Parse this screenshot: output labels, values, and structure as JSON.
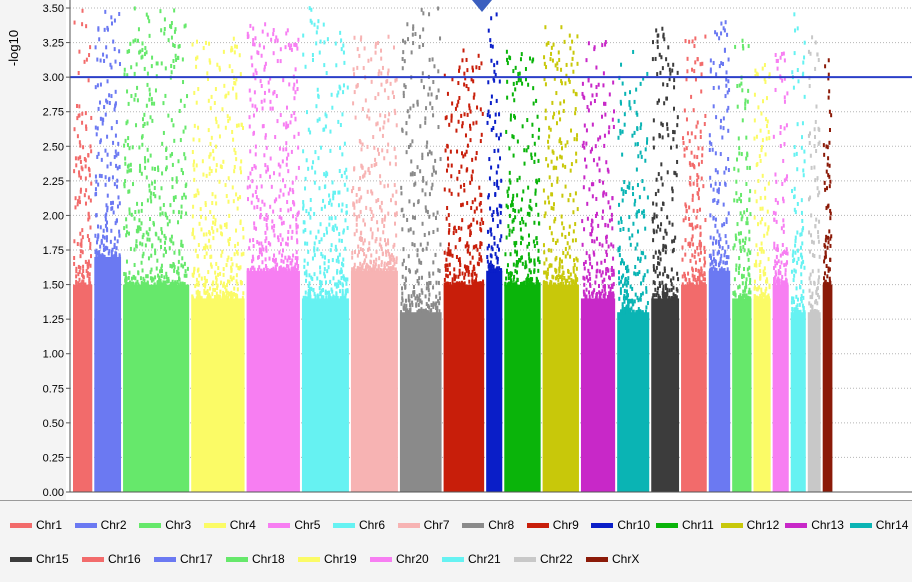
{
  "chart_data": {
    "type": "scatter",
    "title": "",
    "xlabel": "",
    "ylabel": "-log10",
    "ylim": [
      0,
      3.5
    ],
    "yticks": [
      "0.00",
      "0.25",
      "0.50",
      "0.75",
      "1.00",
      "1.25",
      "1.50",
      "1.75",
      "2.00",
      "2.25",
      "2.50",
      "2.75",
      "3.00",
      "3.25",
      "3.50"
    ],
    "threshold": {
      "value": 3.0,
      "color": "#2b3fc8"
    },
    "grid": "horizontal dotted",
    "legend_position": "bottom",
    "series": [
      {
        "name": "Chr1",
        "color": "#f26b6b",
        "peak": 3.5,
        "dense_top": 1.5
      },
      {
        "name": "Chr2",
        "color": "#6b79f2",
        "peak": 3.5,
        "dense_top": 1.7
      },
      {
        "name": "Chr3",
        "color": "#66e86b",
        "peak": 3.5,
        "dense_top": 1.5
      },
      {
        "name": "Chr4",
        "color": "#fbfb66",
        "peak": 3.3,
        "dense_top": 1.4
      },
      {
        "name": "Chr5",
        "color": "#f77ef2",
        "peak": 3.4,
        "dense_top": 1.6
      },
      {
        "name": "Chr6",
        "color": "#66f2f2",
        "peak": 3.5,
        "dense_top": 1.4
      },
      {
        "name": "Chr7",
        "color": "#f7b3b3",
        "peak": 3.3,
        "dense_top": 1.6
      },
      {
        "name": "Chr8",
        "color": "#8a8a8a",
        "peak": 3.5,
        "dense_top": 1.3
      },
      {
        "name": "Chr9",
        "color": "#c81e0a",
        "peak": 3.2,
        "dense_top": 1.5
      },
      {
        "name": "Chr10",
        "color": "#0a1ec8",
        "peak": 3.5,
        "dense_top": 1.6
      },
      {
        "name": "Chr11",
        "color": "#0ab40a",
        "peak": 3.2,
        "dense_top": 1.5
      },
      {
        "name": "Chr12",
        "color": "#c8c80a",
        "peak": 3.4,
        "dense_top": 1.5
      },
      {
        "name": "Chr13",
        "color": "#c828c8",
        "peak": 3.3,
        "dense_top": 1.4
      },
      {
        "name": "Chr14",
        "color": "#0ab4b4",
        "peak": 3.2,
        "dense_top": 1.3
      },
      {
        "name": "Chr15",
        "color": "#3c3c3c",
        "peak": 3.4,
        "dense_top": 1.4
      },
      {
        "name": "Chr16",
        "color": "#f26b6b",
        "peak": 3.3,
        "dense_top": 1.5
      },
      {
        "name": "Chr17",
        "color": "#6b79f2",
        "peak": 3.4,
        "dense_top": 1.6
      },
      {
        "name": "Chr18",
        "color": "#66e86b",
        "peak": 3.3,
        "dense_top": 1.4
      },
      {
        "name": "Chr19",
        "color": "#fbfb66",
        "peak": 3.1,
        "dense_top": 1.4
      },
      {
        "name": "Chr20",
        "color": "#f77ef2",
        "peak": 3.2,
        "dense_top": 1.5
      },
      {
        "name": "Chr21",
        "color": "#66f2f2",
        "peak": 3.5,
        "dense_top": 1.3
      },
      {
        "name": "Chr22",
        "color": "#c8c8c8",
        "peak": 3.3,
        "dense_top": 1.3
      },
      {
        "name": "ChrX",
        "color": "#8b1a08",
        "peak": 3.2,
        "dense_top": 1.5
      }
    ]
  }
}
